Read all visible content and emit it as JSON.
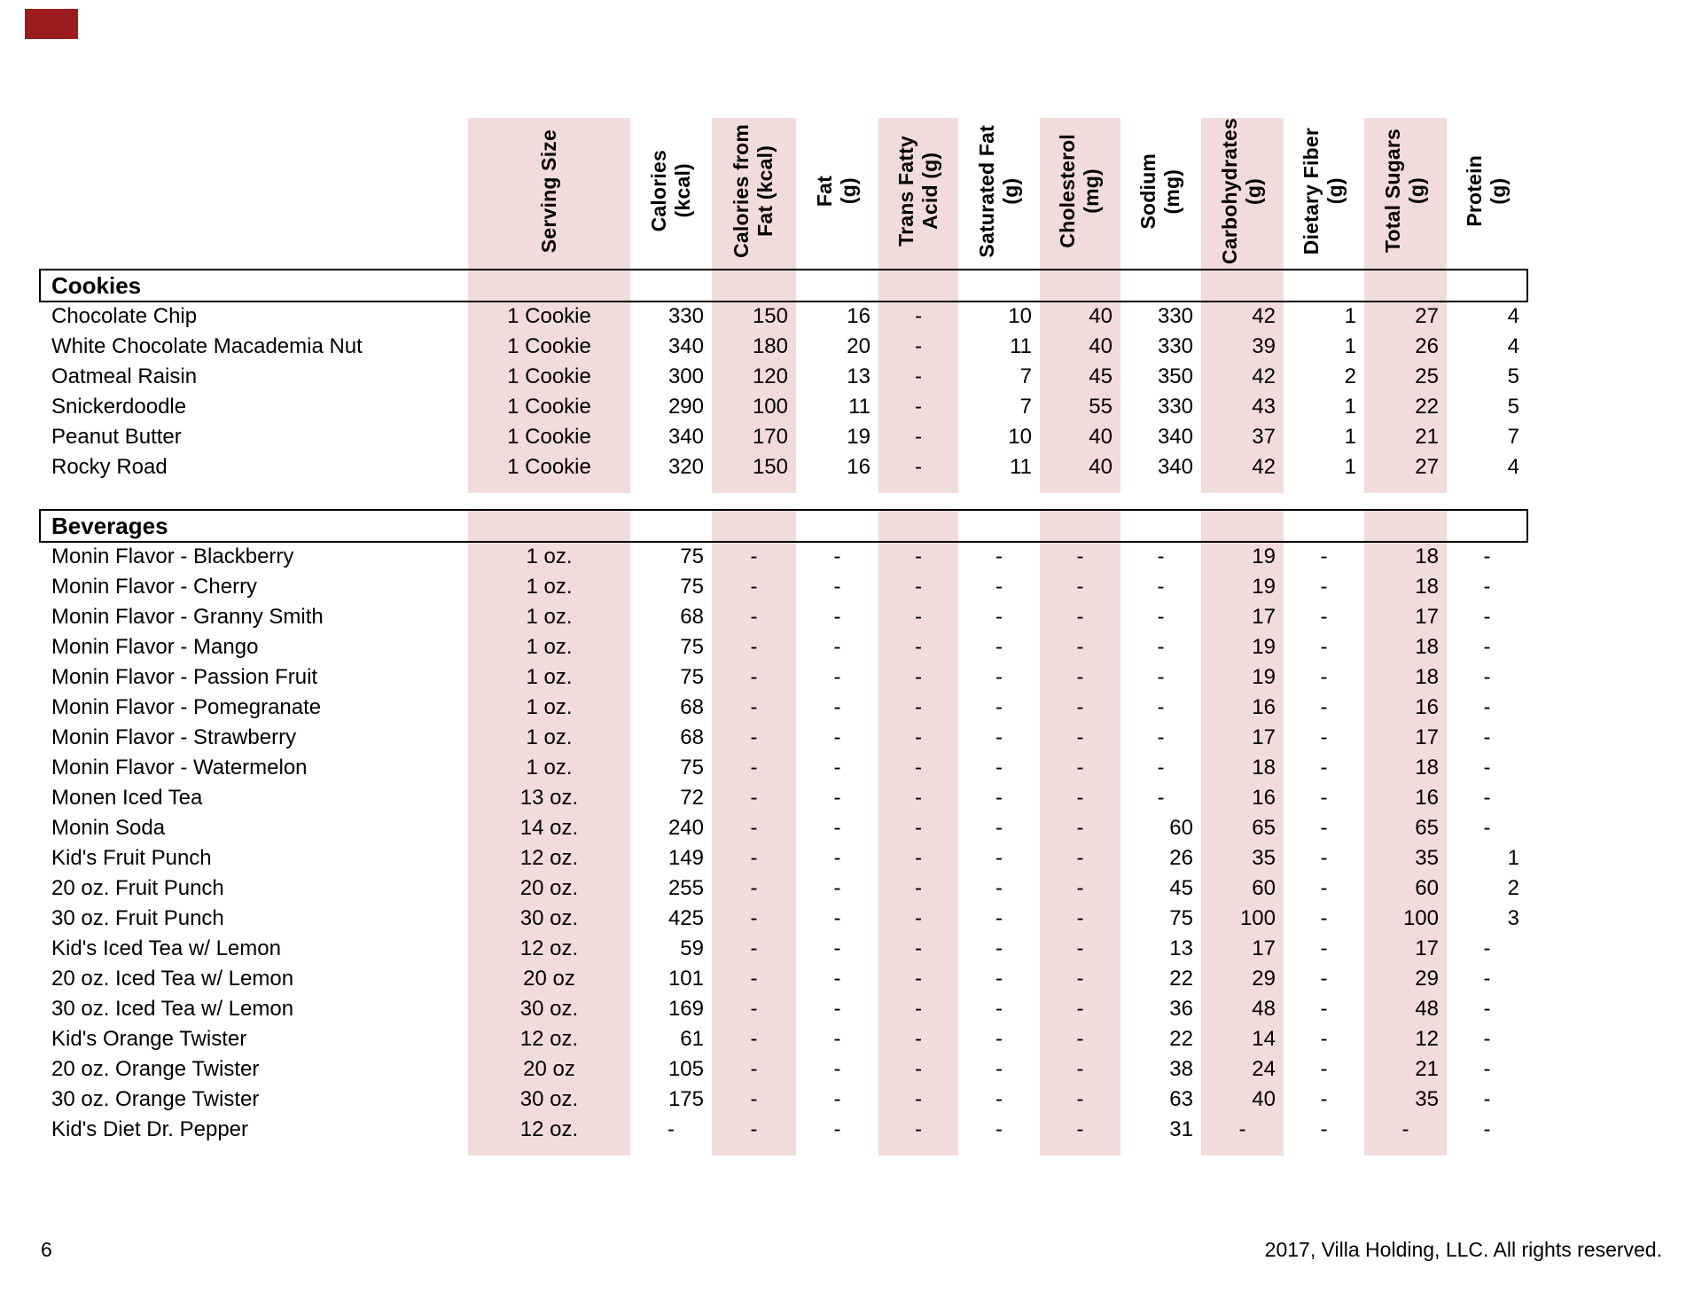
{
  "page": {
    "corner_mark_color": "#9b1b1e",
    "band_color": "#f2dcdb",
    "footer": {
      "page_number": "6",
      "copyright": "2017, Villa Holding, LLC. All rights reserved."
    }
  },
  "table": {
    "columns": [
      {
        "key": "name",
        "label": "",
        "shaded": false
      },
      {
        "key": "serving_size",
        "label": "Serving Size",
        "shaded": true
      },
      {
        "key": "calories",
        "label": "Calories\n(kcal)",
        "shaded": false
      },
      {
        "key": "calories_from_fat",
        "label": "Calories from\nFat (kcal)",
        "shaded": true
      },
      {
        "key": "fat",
        "label": "Fat\n(g)",
        "shaded": false
      },
      {
        "key": "trans_fatty_acid",
        "label": "Trans Fatty\nAcid (g)",
        "shaded": true
      },
      {
        "key": "saturated_fat",
        "label": "Saturated Fat\n(g)",
        "shaded": false
      },
      {
        "key": "cholesterol",
        "label": "Cholesterol\n(mg)",
        "shaded": true
      },
      {
        "key": "sodium",
        "label": "Sodium\n(mg)",
        "shaded": false
      },
      {
        "key": "carbohydrates",
        "label": "Carbohydrates\n(g)",
        "shaded": true
      },
      {
        "key": "dietary_fiber",
        "label": "Dietary Fiber\n(g)",
        "shaded": false
      },
      {
        "key": "total_sugars",
        "label": "Total Sugars\n(g)",
        "shaded": true
      },
      {
        "key": "protein",
        "label": "Protein\n(g)",
        "shaded": false
      }
    ],
    "sections": [
      {
        "title": "Cookies",
        "rows": [
          [
            "Chocolate Chip",
            "1 Cookie",
            "330",
            "150",
            "16",
            "-",
            "10",
            "40",
            "330",
            "42",
            "1",
            "27",
            "4"
          ],
          [
            "White Chocolate Macademia Nut",
            "1 Cookie",
            "340",
            "180",
            "20",
            "-",
            "11",
            "40",
            "330",
            "39",
            "1",
            "26",
            "4"
          ],
          [
            "Oatmeal Raisin",
            "1 Cookie",
            "300",
            "120",
            "13",
            "-",
            "7",
            "45",
            "350",
            "42",
            "2",
            "25",
            "5"
          ],
          [
            "Snickerdoodle",
            "1 Cookie",
            "290",
            "100",
            "11",
            "-",
            "7",
            "55",
            "330",
            "43",
            "1",
            "22",
            "5"
          ],
          [
            "Peanut Butter",
            "1 Cookie",
            "340",
            "170",
            "19",
            "-",
            "10",
            "40",
            "340",
            "37",
            "1",
            "21",
            "7"
          ],
          [
            "Rocky Road",
            "1 Cookie",
            "320",
            "150",
            "16",
            "-",
            "11",
            "40",
            "340",
            "42",
            "1",
            "27",
            "4"
          ]
        ]
      },
      {
        "title": "Beverages",
        "rows": [
          [
            "Monin Flavor - Blackberry",
            "1 oz.",
            "75",
            "-",
            "-",
            "-",
            "-",
            "-",
            "-",
            "19",
            "-",
            "18",
            "-"
          ],
          [
            "Monin Flavor - Cherry",
            "1 oz.",
            "75",
            "-",
            "-",
            "-",
            "-",
            "-",
            "-",
            "19",
            "-",
            "18",
            "-"
          ],
          [
            "Monin Flavor - Granny Smith",
            "1 oz.",
            "68",
            "-",
            "-",
            "-",
            "-",
            "-",
            "-",
            "17",
            "-",
            "17",
            "-"
          ],
          [
            "Monin Flavor - Mango",
            "1 oz.",
            "75",
            "-",
            "-",
            "-",
            "-",
            "-",
            "-",
            "19",
            "-",
            "18",
            "-"
          ],
          [
            "Monin Flavor - Passion Fruit",
            "1 oz.",
            "75",
            "-",
            "-",
            "-",
            "-",
            "-",
            "-",
            "19",
            "-",
            "18",
            "-"
          ],
          [
            "Monin Flavor - Pomegranate",
            "1 oz.",
            "68",
            "-",
            "-",
            "-",
            "-",
            "-",
            "-",
            "16",
            "-",
            "16",
            "-"
          ],
          [
            "Monin Flavor - Strawberry",
            "1 oz.",
            "68",
            "-",
            "-",
            "-",
            "-",
            "-",
            "-",
            "17",
            "-",
            "17",
            "-"
          ],
          [
            "Monin Flavor - Watermelon",
            "1 oz.",
            "75",
            "-",
            "-",
            "-",
            "-",
            "-",
            "-",
            "18",
            "-",
            "18",
            "-"
          ],
          [
            "Monen Iced Tea",
            "13 oz.",
            "72",
            "-",
            "-",
            "-",
            "-",
            "-",
            "-",
            "16",
            "-",
            "16",
            "-"
          ],
          [
            "Monin Soda",
            "14 oz.",
            "240",
            "-",
            "-",
            "-",
            "-",
            "-",
            "60",
            "65",
            "-",
            "65",
            "-"
          ],
          [
            "Kid's Fruit Punch",
            "12 oz.",
            "149",
            "-",
            "-",
            "-",
            "-",
            "-",
            "26",
            "35",
            "-",
            "35",
            "1"
          ],
          [
            "20 oz. Fruit Punch",
            "20 oz.",
            "255",
            "-",
            "-",
            "-",
            "-",
            "-",
            "45",
            "60",
            "-",
            "60",
            "2"
          ],
          [
            "30 oz. Fruit Punch",
            "30 oz.",
            "425",
            "-",
            "-",
            "-",
            "-",
            "-",
            "75",
            "100",
            "-",
            "100",
            "3"
          ],
          [
            "Kid's Iced Tea w/ Lemon",
            "12 oz.",
            "59",
            "-",
            "-",
            "-",
            "-",
            "-",
            "13",
            "17",
            "-",
            "17",
            "-"
          ],
          [
            "20 oz. Iced Tea w/ Lemon",
            "20 oz",
            "101",
            "-",
            "-",
            "-",
            "-",
            "-",
            "22",
            "29",
            "-",
            "29",
            "-"
          ],
          [
            "30 oz. Iced Tea w/ Lemon",
            "30 oz.",
            "169",
            "-",
            "-",
            "-",
            "-",
            "-",
            "36",
            "48",
            "-",
            "48",
            "-"
          ],
          [
            "Kid's Orange Twister",
            "12 oz.",
            "61",
            "-",
            "-",
            "-",
            "-",
            "-",
            "22",
            "14",
            "-",
            "12",
            "-"
          ],
          [
            "20 oz. Orange Twister",
            "20 oz",
            "105",
            "-",
            "-",
            "-",
            "-",
            "-",
            "38",
            "24",
            "-",
            "21",
            "-"
          ],
          [
            "30 oz. Orange Twister",
            "30 oz.",
            "175",
            "-",
            "-",
            "-",
            "-",
            "-",
            "63",
            "40",
            "-",
            "35",
            "-"
          ],
          [
            "Kid's Diet Dr. Pepper",
            "12 oz.",
            "-",
            "-",
            "-",
            "-",
            "-",
            "-",
            "31",
            "-",
            "-",
            "-",
            "-"
          ]
        ]
      }
    ]
  }
}
